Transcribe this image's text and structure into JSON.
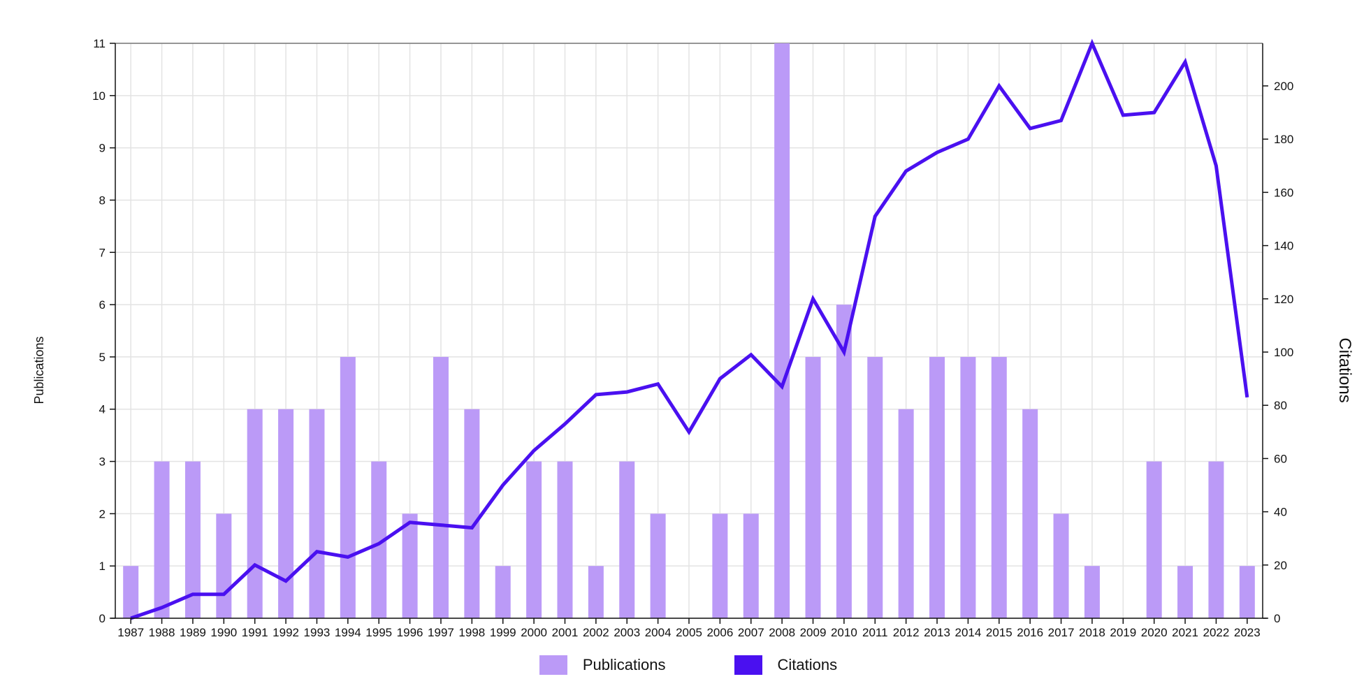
{
  "chart_data": {
    "type": "bar",
    "categories": [
      "1987",
      "1988",
      "1989",
      "1990",
      "1991",
      "1992",
      "1993",
      "1994",
      "1995",
      "1996",
      "1997",
      "1998",
      "1999",
      "2000",
      "2001",
      "2002",
      "2003",
      "2004",
      "2005",
      "2006",
      "2007",
      "2008",
      "2009",
      "2010",
      "2011",
      "2012",
      "2013",
      "2014",
      "2015",
      "2016",
      "2017",
      "2018",
      "2019",
      "2020",
      "2021",
      "2022",
      "2023"
    ],
    "series": [
      {
        "name": "Publications",
        "type": "bar",
        "axis": "left",
        "color": "#bb9af7",
        "values": [
          1,
          3,
          3,
          2,
          4,
          4,
          4,
          5,
          3,
          2,
          5,
          4,
          1,
          3,
          3,
          1,
          3,
          2,
          0,
          2,
          2,
          11,
          5,
          6,
          5,
          4,
          5,
          5,
          5,
          4,
          2,
          1,
          0,
          3,
          1,
          3,
          1
        ]
      },
      {
        "name": "Citations",
        "type": "line",
        "axis": "right",
        "color": "#4a10f0",
        "values": [
          0,
          4,
          9,
          9,
          20,
          14,
          25,
          23,
          28,
          36,
          35,
          34,
          50,
          63,
          73,
          84,
          85,
          88,
          70,
          90,
          99,
          87,
          120,
          100,
          151,
          168,
          175,
          180,
          200,
          184,
          187,
          216,
          189,
          190,
          209,
          170,
          83
        ]
      }
    ],
    "left_axis": {
      "label": "Publications",
      "ylim": [
        0,
        11
      ],
      "ticks": [
        "0",
        "1",
        "2",
        "3",
        "4",
        "5",
        "6",
        "7",
        "8",
        "9",
        "10",
        "11"
      ]
    },
    "right_axis": {
      "label": "Citations",
      "ylim": [
        0,
        216
      ],
      "ticks": [
        "0",
        "20",
        "40",
        "60",
        "80",
        "100",
        "120",
        "140",
        "160",
        "180",
        "200"
      ]
    },
    "grid": true,
    "legend_position": "bottom-center"
  },
  "legend": {
    "publications_label": "Publications",
    "citations_label": "Citations"
  }
}
